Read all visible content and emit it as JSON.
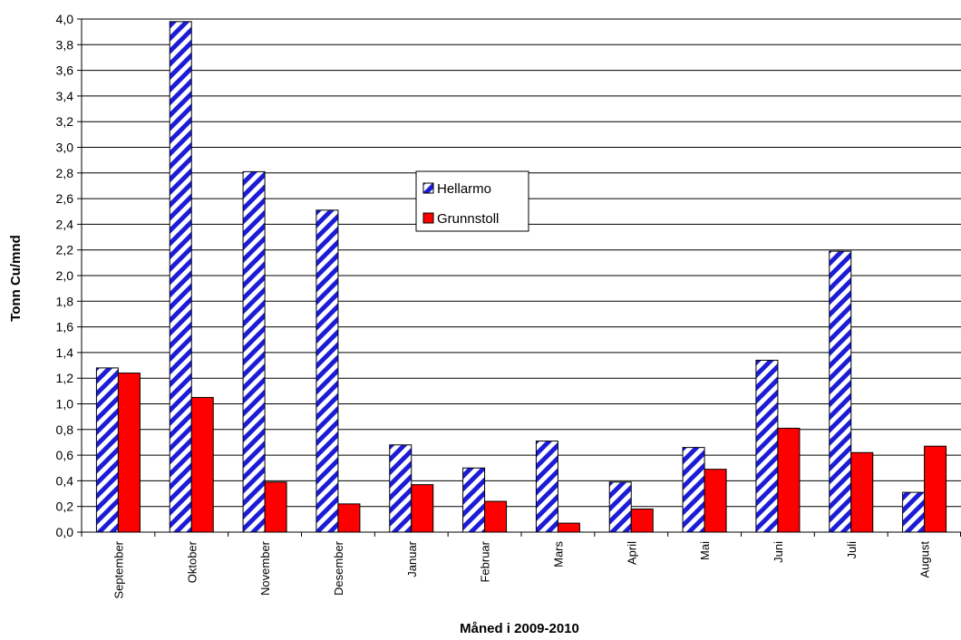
{
  "chart_data": {
    "type": "bar",
    "xlabel": "Måned i 2009-2010",
    "ylabel": "Tonn Cu/mnd",
    "ylim": [
      0,
      4.0
    ],
    "ytick_step": 0.2,
    "grid": true,
    "legend_position": "center",
    "categories": [
      "September",
      "Oktober",
      "November",
      "Desember",
      "Januar",
      "Februar",
      "Mars",
      "April",
      "Mai",
      "Juni",
      "Juli",
      "August"
    ],
    "series": [
      {
        "name": "Hellarmo",
        "pattern": "diagonal-stripes",
        "color": "#1c1cd6",
        "values": [
          1.28,
          3.98,
          2.81,
          2.51,
          0.68,
          0.5,
          0.71,
          0.39,
          0.66,
          1.34,
          2.19,
          0.31
        ]
      },
      {
        "name": "Grunnstoll",
        "pattern": "solid",
        "color": "#ff0000",
        "values": [
          1.24,
          1.05,
          0.39,
          0.22,
          0.37,
          0.24,
          0.07,
          0.18,
          0.49,
          0.81,
          0.62,
          0.67
        ]
      }
    ]
  }
}
